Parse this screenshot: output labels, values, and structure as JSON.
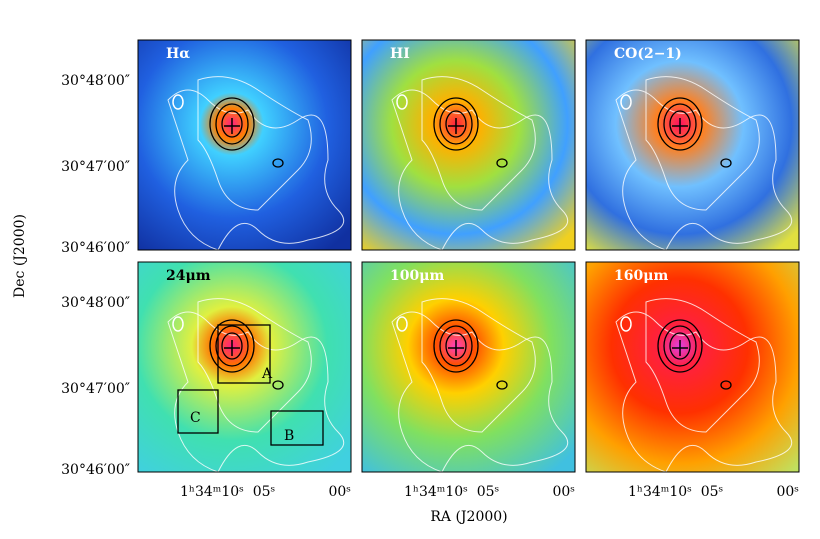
{
  "axes": {
    "x_label": "RA (J2000)",
    "y_label": "Dec (J2000)"
  },
  "y_ticks": [
    "30°48′00″",
    "30°47′00″",
    "30°46′00″"
  ],
  "x_ticks": [
    "1ʰ34ᵐ10ˢ",
    "05ˢ",
    "00ˢ"
  ],
  "panels": [
    {
      "label": "Hα"
    },
    {
      "label": "HI"
    },
    {
      "label": "CO(2−1)"
    },
    {
      "label": "24μm"
    },
    {
      "label": "100μm"
    },
    {
      "label": "160μm"
    }
  ],
  "regions": [
    "A",
    "B",
    "C"
  ]
}
